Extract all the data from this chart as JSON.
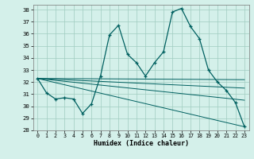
{
  "xlabel": "Humidex (Indice chaleur)",
  "xlim": [
    -0.5,
    23.5
  ],
  "ylim": [
    28,
    38.4
  ],
  "yticks": [
    28,
    29,
    30,
    31,
    32,
    33,
    34,
    35,
    36,
    37,
    38
  ],
  "xticks": [
    0,
    1,
    2,
    3,
    4,
    5,
    6,
    7,
    8,
    9,
    10,
    11,
    12,
    13,
    14,
    15,
    16,
    17,
    18,
    19,
    20,
    21,
    22,
    23
  ],
  "line_color": "#006060",
  "bg_color": "#d4f0ea",
  "grid_color": "#a0ccc0",
  "main_curve": {
    "x": [
      0,
      1,
      2,
      3,
      4,
      5,
      6,
      7,
      8,
      9,
      10,
      11,
      12,
      13,
      14,
      15,
      16,
      17,
      18,
      19,
      20,
      21,
      22,
      23
    ],
    "y": [
      32.3,
      31.1,
      30.6,
      30.7,
      30.6,
      29.4,
      30.2,
      32.5,
      35.9,
      36.7,
      34.3,
      33.6,
      32.5,
      33.6,
      34.5,
      37.8,
      38.1,
      36.6,
      35.6,
      33.0,
      32.0,
      31.3,
      30.3,
      28.3
    ]
  },
  "straight_lines": [
    {
      "x": [
        0,
        23
      ],
      "y": [
        32.3,
        28.3
      ]
    },
    {
      "x": [
        0,
        23
      ],
      "y": [
        32.3,
        30.5
      ]
    },
    {
      "x": [
        0,
        23
      ],
      "y": [
        32.3,
        31.5
      ]
    },
    {
      "x": [
        0,
        23
      ],
      "y": [
        32.3,
        32.2
      ]
    }
  ]
}
